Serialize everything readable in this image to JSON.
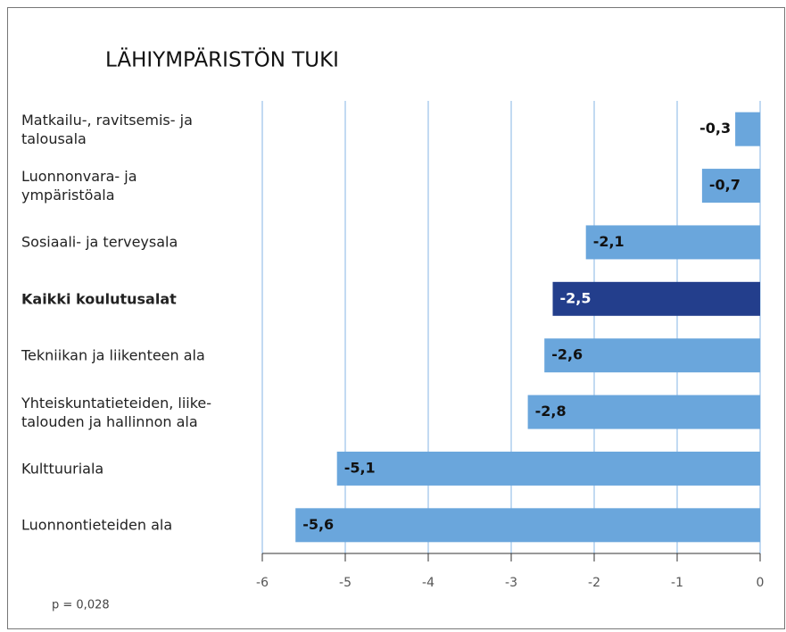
{
  "chart_data": {
    "type": "barh",
    "title": "LÄHIYMPÄRISTÖN TUKI",
    "categories": [
      "Matkailu-, ravitsemis- ja\ntalousala",
      "Luonnonvara- ja\nympäristöala",
      "Sosiaali- ja terveysala",
      "Kaikki koulutusalat",
      "Tekniikan ja liikenteen ala",
      "Yhteiskuntatieteiden, liike-\ntalouden ja hallinnon ala",
      "Kulttuuriala",
      "Luonnontieteiden ala"
    ],
    "values": [
      -0.3,
      -0.7,
      -2.1,
      -2.5,
      -2.6,
      -2.8,
      -5.1,
      -5.6
    ],
    "value_labels": [
      "-0,3",
      "-0,7",
      "-2,1",
      "-2,5",
      "-2,6",
      "-2,8",
      "-5,1",
      "-5,6"
    ],
    "color": "#6aa6dc",
    "highlight_color": "#233e8c",
    "highlight_index": 3,
    "xlim": [
      -6,
      0
    ],
    "xticks": [
      -6,
      -5,
      -4,
      -3,
      -2,
      -1,
      0
    ],
    "grid": true,
    "note": "p = 0,028"
  }
}
